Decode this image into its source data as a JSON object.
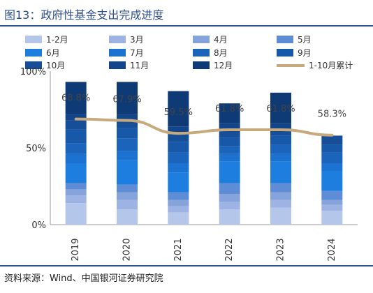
{
  "figure": {
    "title": "图13：政府性基金支出完成进度",
    "source": "资料来源：Wind、中国银河证券研究院"
  },
  "chart_data": {
    "type": "bar",
    "stacked": true,
    "categories": [
      "2019",
      "2020",
      "2021",
      "2022",
      "2023",
      "2024"
    ],
    "ylim": [
      0,
      100
    ],
    "yticks": [
      "0%",
      "50%",
      "100%"
    ],
    "grid": false,
    "legend_position": "top",
    "series": [
      {
        "name": "1-2月",
        "color": "#b4c6ea",
        "values": [
          14,
          10,
          8,
          10,
          11,
          9
        ]
      },
      {
        "name": "3月",
        "color": "#9db3e3",
        "values": [
          5,
          6,
          4,
          5,
          5,
          4
        ]
      },
      {
        "name": "4月",
        "color": "#86a3db",
        "values": [
          4,
          5,
          4,
          5,
          5,
          3
        ]
      },
      {
        "name": "5月",
        "color": "#5f8dd5",
        "values": [
          4,
          5,
          5,
          7,
          6,
          6
        ]
      },
      {
        "name": "6月",
        "color": "#1e7ee0",
        "values": [
          13,
          16,
          13,
          14,
          14,
          13
        ]
      },
      {
        "name": "7月",
        "color": "#1c72d0",
        "values": [
          6,
          6,
          6,
          5,
          5,
          5
        ]
      },
      {
        "name": "8月",
        "color": "#1a64bb",
        "values": [
          7,
          8,
          7,
          5,
          6,
          7
        ]
      },
      {
        "name": "9月",
        "color": "#1858a9",
        "values": [
          9,
          7,
          7,
          6,
          6,
          5
        ]
      },
      {
        "name": "10月",
        "color": "#164f97",
        "values": [
          6,
          5,
          5,
          5,
          4,
          6
        ]
      },
      {
        "name": "11月",
        "color": "#12458a",
        "values": [
          4,
          4,
          5,
          4,
          4,
          0
        ]
      },
      {
        "name": "12月",
        "color": "#0e3a75",
        "values": [
          21,
          21,
          23,
          13,
          20,
          0
        ]
      }
    ],
    "overlay": {
      "label_series": "1-10月累计",
      "line_series": {
        "name": "1-10月累计",
        "color": "#c7a97c",
        "values": [
          68.8,
          67.9,
          59.5,
          61.8,
          61.8,
          58.3
        ]
      },
      "value_labels": [
        "68.8%",
        "67.9%",
        "59.5%",
        "61.8%",
        "61.8%",
        "58.3%"
      ]
    }
  }
}
